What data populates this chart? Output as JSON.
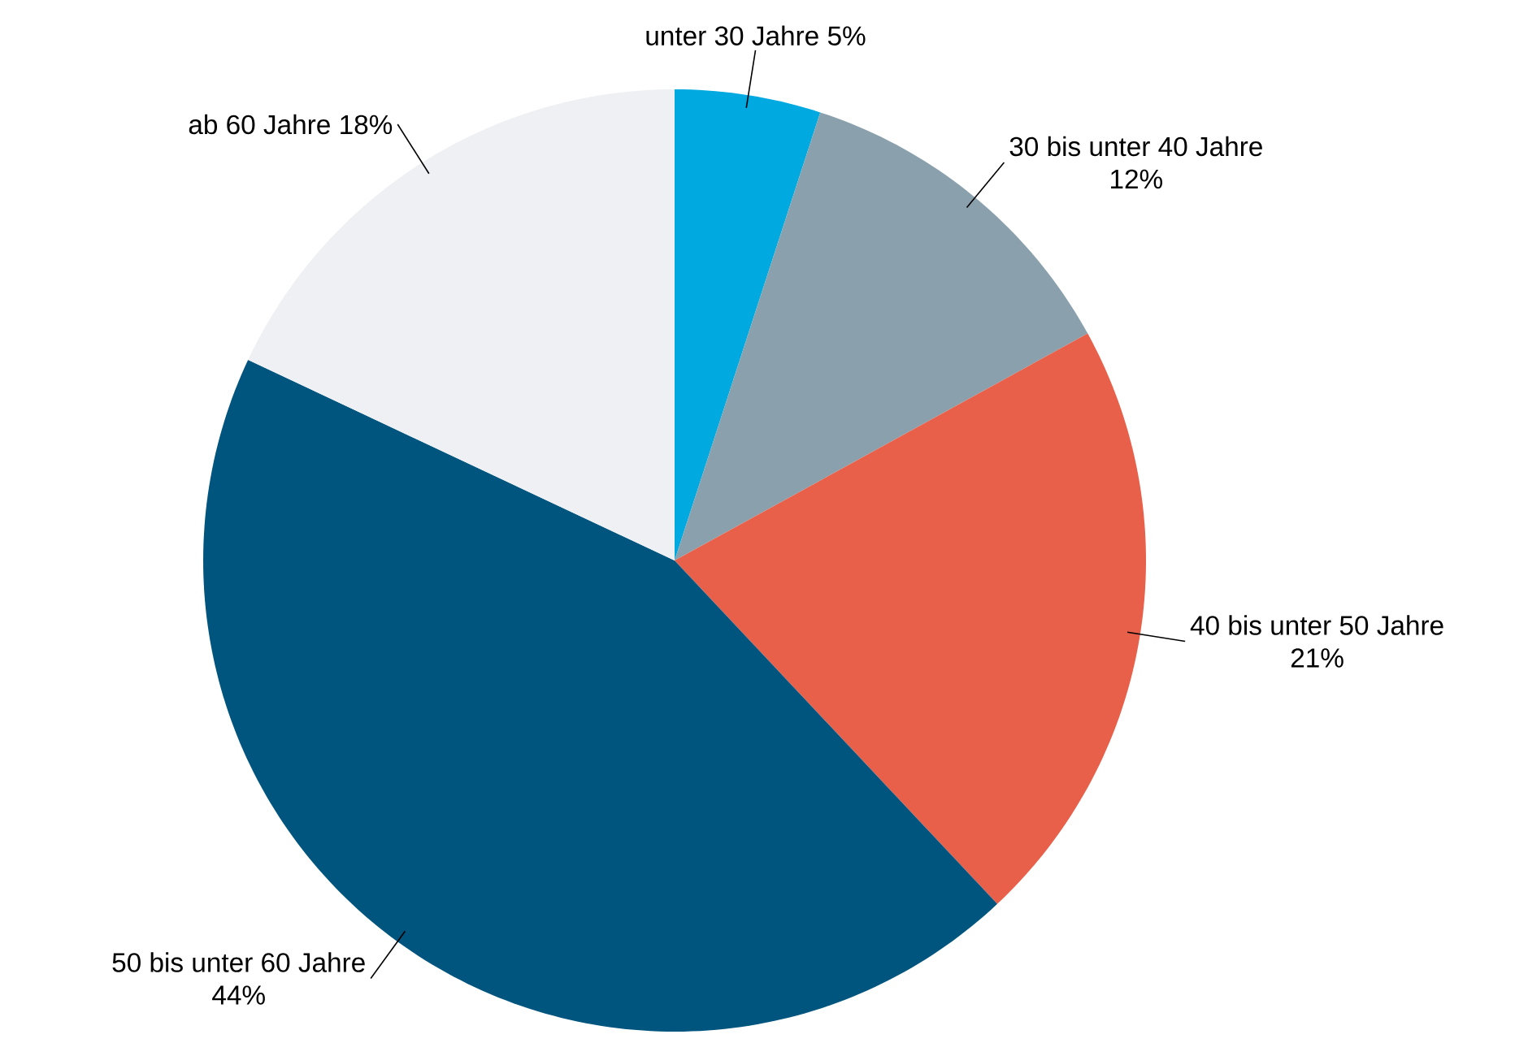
{
  "chart_data": {
    "type": "pie",
    "categories": [
      "unter 30 Jahre",
      "30 bis unter 40 Jahre",
      "40 bis unter 50 Jahre",
      "50 bis unter 60 Jahre",
      "ab 60 Jahre"
    ],
    "values": [
      5,
      12,
      21,
      44,
      18
    ],
    "value_labels": [
      "5%",
      "12%",
      "21%",
      "44%",
      "18%"
    ],
    "colors": [
      "#00a9e0",
      "#8aa1ad",
      "#e8604a",
      "#00557f",
      "#eef0f3"
    ]
  }
}
